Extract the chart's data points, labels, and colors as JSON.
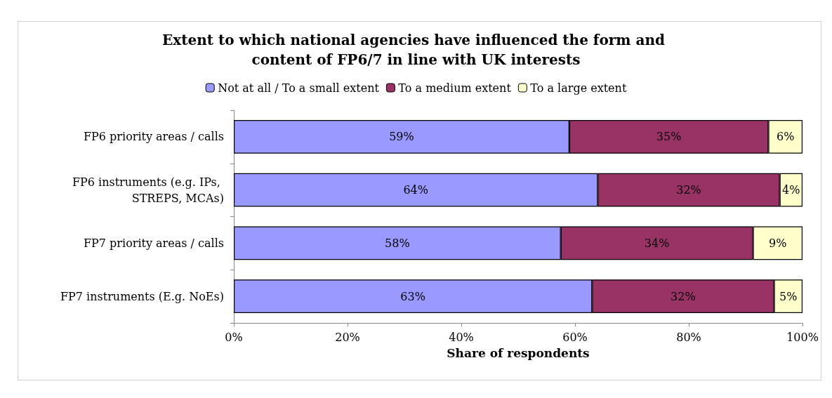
{
  "chart_data": {
    "type": "bar",
    "orientation": "horizontal",
    "stacked": true,
    "title": "Extent to which national agencies have influenced the form and content of FP6/7 in line with UK interests",
    "xlabel": "Share of respondents",
    "categories": [
      "FP6 priority areas / calls",
      "FP6 instruments (e.g. IPs, STREPS, MCAs)",
      "FP7 priority areas / calls",
      "FP7 instruments (E.g. NoEs)"
    ],
    "series": [
      {
        "name": "Not at all / To a small extent",
        "color": "#9999ff",
        "values": [
          59,
          64,
          57.5,
          63
        ],
        "value_labels": [
          "59%",
          "64%",
          "58%",
          "63%"
        ]
      },
      {
        "name": "To a medium extent",
        "color": "#993366",
        "values": [
          35,
          32,
          33.8,
          32
        ],
        "value_labels": [
          "35%",
          "32%",
          "34%",
          "32%"
        ]
      },
      {
        "name": "To a large extent",
        "color": "#ffffcc",
        "values": [
          6,
          4,
          8.7,
          5
        ],
        "value_labels": [
          "6%",
          "4%",
          "9%",
          "5%"
        ]
      }
    ],
    "xlim": [
      0,
      100
    ],
    "xticks": [
      {
        "value": 0,
        "label": "0%"
      },
      {
        "value": 20,
        "label": "20%"
      },
      {
        "value": 40,
        "label": "40%"
      },
      {
        "value": 60,
        "label": "60%"
      },
      {
        "value": 80,
        "label": "80%"
      },
      {
        "value": 100,
        "label": "100%"
      }
    ],
    "grid": false,
    "legend": "top"
  }
}
